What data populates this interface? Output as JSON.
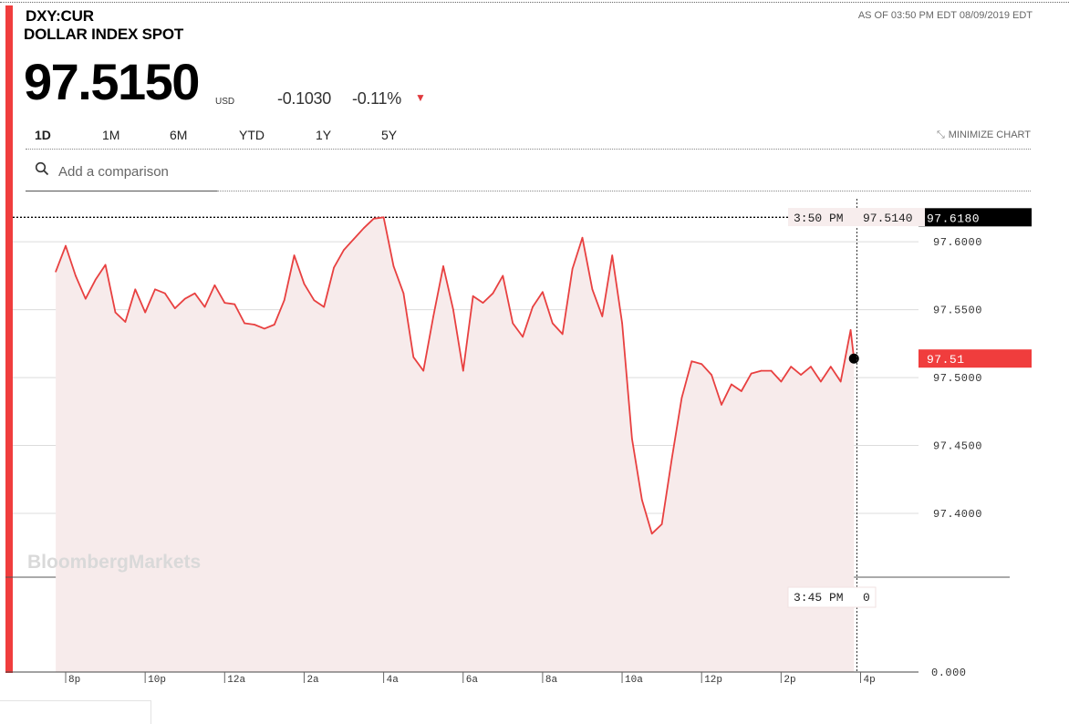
{
  "header": {
    "ticker": "DXY:CUR",
    "name": "DOLLAR INDEX SPOT",
    "as_of": "AS OF 03:50 PM EDT 08/09/2019 EDT",
    "price": "97.5150",
    "currency": "USD",
    "change": "-0.1030",
    "change_pct": "-0.11%",
    "direction_glyph": "▼"
  },
  "range_tabs": [
    {
      "label": "1D",
      "active": true
    },
    {
      "label": "1M",
      "active": false
    },
    {
      "label": "6M",
      "active": false
    },
    {
      "label": "YTD",
      "active": false
    },
    {
      "label": "1Y",
      "active": false
    },
    {
      "label": "5Y",
      "active": false
    }
  ],
  "minimize_label": "MINIMIZE CHART",
  "search": {
    "placeholder": "Add a comparison"
  },
  "watermark": "BloombergMarkets",
  "colors": {
    "accent": "#f03d3d",
    "line": "#e84040",
    "line_above": "#3a8fc8",
    "fill": "#f7ebeb"
  },
  "chart_data": [
    {
      "type": "line",
      "title": "",
      "xlabel": "",
      "ylabel": "",
      "x_ticks": [
        "8p",
        "10p",
        "12a",
        "2a",
        "4a",
        "6a",
        "8a",
        "10a",
        "12p",
        "2p",
        "4p"
      ],
      "y_ticks": [
        "97.6000",
        "97.5500",
        "97.5000",
        "97.4500",
        "97.4000"
      ],
      "ylim": [
        97.353,
        97.635
      ],
      "grid": true,
      "previous_close": "97.6180",
      "last_price_tag": "97.51",
      "crosshair": {
        "time": "3:50 PM",
        "value": "97.5140"
      },
      "series": [
        {
          "x": [
            "7:45p",
            "8:00p",
            "8:15p",
            "8:30p",
            "8:45p",
            "9:00p",
            "9:15p",
            "9:30p",
            "9:45p",
            "10:00p",
            "10:15p",
            "10:30p",
            "10:45p",
            "11:00p",
            "11:15p",
            "11:30p",
            "11:45p",
            "12:00a",
            "12:15a",
            "12:30a",
            "12:45a",
            "1:00a",
            "1:15a",
            "1:30a",
            "1:45a",
            "2:00a",
            "2:15a",
            "2:30a",
            "2:45a",
            "3:00a",
            "3:15a",
            "3:30a",
            "3:45a",
            "4:00a",
            "4:15a",
            "4:30a",
            "4:45a",
            "5:00a",
            "5:15a",
            "5:30a",
            "5:45a",
            "6:00a",
            "6:15a",
            "6:30a",
            "6:45a",
            "7:00a",
            "7:15a",
            "7:30a",
            "7:45a",
            "8:00a",
            "8:15a",
            "8:30a",
            "8:45a",
            "9:00a",
            "9:15a",
            "9:30a",
            "9:45a",
            "10:00a",
            "10:15a",
            "10:30a",
            "10:45a",
            "11:00a",
            "11:15a",
            "11:30a",
            "11:45a",
            "12:00p",
            "12:15p",
            "12:30p",
            "12:45p",
            "1:00p",
            "1:15p",
            "1:30p",
            "1:45p",
            "2:00p",
            "2:15p",
            "2:30p",
            "2:45p",
            "3:00p",
            "3:15p",
            "3:30p",
            "3:45p",
            "3:50p"
          ],
          "values": [
            97.578,
            97.597,
            97.575,
            97.558,
            97.572,
            97.583,
            97.548,
            97.541,
            97.565,
            97.548,
            97.565,
            97.562,
            97.551,
            97.558,
            97.562,
            97.552,
            97.568,
            97.555,
            97.554,
            97.54,
            97.539,
            97.536,
            97.539,
            97.557,
            97.59,
            97.569,
            97.557,
            97.552,
            97.581,
            97.594,
            97.602,
            97.61,
            97.617,
            97.618,
            97.582,
            97.562,
            97.515,
            97.505,
            97.545,
            97.582,
            97.55,
            97.505,
            97.56,
            97.555,
            97.562,
            97.575,
            97.54,
            97.53,
            97.552,
            97.563,
            97.54,
            97.532,
            97.58,
            97.603,
            97.565,
            97.545,
            97.59,
            97.54,
            97.455,
            97.41,
            97.385,
            97.392,
            97.44,
            97.485,
            97.512,
            97.51,
            97.502,
            97.48,
            97.495,
            97.49,
            97.503,
            97.505,
            97.505,
            97.497,
            97.508,
            97.502,
            97.508,
            97.497,
            97.508,
            97.497,
            97.535,
            97.514
          ]
        }
      ]
    },
    {
      "type": "area",
      "title": "",
      "ylabel": "",
      "y_ticks": [
        "0.000"
      ],
      "crosshair": {
        "time": "3:45 PM",
        "value": "0"
      },
      "values": [
        0,
        0,
        0,
        0,
        0,
        0,
        0,
        0,
        0,
        0,
        0
      ]
    }
  ]
}
